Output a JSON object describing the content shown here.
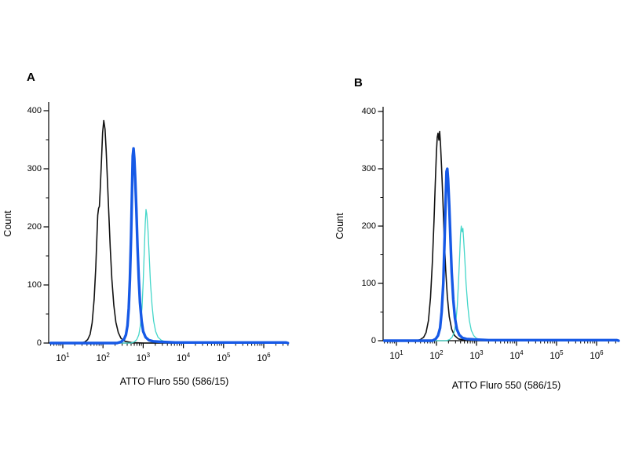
{
  "figure": {
    "background": "#ffffff",
    "axis_color": "#000000"
  },
  "chart_data": [
    {
      "type": "line",
      "title": "A",
      "xlabel": "ATTO Fluro 550 (586/15)",
      "ylabel": "Count",
      "x_scale": "log10",
      "x_tick_base": "10",
      "x_tick_exponents": [
        1,
        2,
        3,
        4,
        5,
        6
      ],
      "xlim_log": [
        0.65,
        6.62
      ],
      "y_ticks": [
        0,
        100,
        200,
        300,
        400
      ],
      "ylim": [
        0,
        400
      ],
      "grid": false,
      "legend": "none",
      "series": [
        {
          "name": "series-black",
          "color": "#111111",
          "stroke_width": 1.6,
          "peak": {
            "log_x": 2.02,
            "count": 383
          },
          "points": [
            [
              0.7,
              0
            ],
            [
              1.45,
              0
            ],
            [
              1.55,
              2
            ],
            [
              1.62,
              6
            ],
            [
              1.68,
              15
            ],
            [
              1.73,
              35
            ],
            [
              1.78,
              75
            ],
            [
              1.82,
              130
            ],
            [
              1.85,
              185
            ],
            [
              1.87,
              220
            ],
            [
              1.89,
              232
            ],
            [
              1.91,
              235
            ],
            [
              1.93,
              262
            ],
            [
              1.96,
              312
            ],
            [
              1.99,
              362
            ],
            [
              2.02,
              383
            ],
            [
              2.05,
              368
            ],
            [
              2.08,
              330
            ],
            [
              2.11,
              282
            ],
            [
              2.14,
              230
            ],
            [
              2.18,
              165
            ],
            [
              2.22,
              110
            ],
            [
              2.27,
              65
            ],
            [
              2.32,
              36
            ],
            [
              2.38,
              18
            ],
            [
              2.45,
              8
            ],
            [
              2.55,
              3
            ],
            [
              2.7,
              1
            ],
            [
              3.0,
              0
            ],
            [
              6.55,
              0
            ]
          ]
        },
        {
          "name": "series-cyan",
          "color": "#43d6c9",
          "stroke_width": 1.3,
          "peak": {
            "log_x": 3.07,
            "count": 230
          },
          "points": [
            [
              0.7,
              0
            ],
            [
              2.7,
              0
            ],
            [
              2.78,
              2
            ],
            [
              2.84,
              6
            ],
            [
              2.89,
              14
            ],
            [
              2.93,
              30
            ],
            [
              2.97,
              60
            ],
            [
              3.0,
              105
            ],
            [
              3.03,
              162
            ],
            [
              3.05,
              205
            ],
            [
              3.07,
              230
            ],
            [
              3.09,
              222
            ],
            [
              3.12,
              195
            ],
            [
              3.15,
              150
            ],
            [
              3.18,
              105
            ],
            [
              3.22,
              65
            ],
            [
              3.26,
              38
            ],
            [
              3.31,
              20
            ],
            [
              3.37,
              10
            ],
            [
              3.45,
              5
            ],
            [
              3.55,
              2
            ],
            [
              3.75,
              1
            ],
            [
              4.1,
              0
            ],
            [
              6.55,
              0
            ]
          ]
        },
        {
          "name": "series-blue",
          "color": "#1659e6",
          "stroke_width": 3.4,
          "peak": {
            "log_x": 2.75,
            "count": 335
          },
          "points": [
            [
              0.7,
              0
            ],
            [
              2.35,
              0
            ],
            [
              2.45,
              2
            ],
            [
              2.52,
              6
            ],
            [
              2.57,
              14
            ],
            [
              2.61,
              30
            ],
            [
              2.64,
              60
            ],
            [
              2.67,
              110
            ],
            [
              2.7,
              185
            ],
            [
              2.72,
              258
            ],
            [
              2.74,
              322
            ],
            [
              2.76,
              335
            ],
            [
              2.78,
              318
            ],
            [
              2.8,
              285
            ],
            [
              2.83,
              230
            ],
            [
              2.86,
              165
            ],
            [
              2.89,
              110
            ],
            [
              2.92,
              70
            ],
            [
              2.96,
              38
            ],
            [
              3.0,
              20
            ],
            [
              3.06,
              10
            ],
            [
              3.14,
              5
            ],
            [
              3.25,
              3
            ],
            [
              3.45,
              2
            ],
            [
              3.8,
              1
            ],
            [
              6.55,
              1
            ],
            [
              6.6,
              0
            ]
          ]
        }
      ]
    },
    {
      "type": "line",
      "title": "B",
      "xlabel": "ATTO Fluro 550 (586/15)",
      "ylabel": "Count",
      "x_scale": "log10",
      "x_tick_base": "10",
      "x_tick_exponents": [
        1,
        2,
        3,
        4,
        5,
        6
      ],
      "xlim_log": [
        0.67,
        6.53
      ],
      "y_ticks": [
        0,
        100,
        200,
        300,
        400
      ],
      "ylim": [
        0,
        400
      ],
      "grid": false,
      "legend": "none",
      "series": [
        {
          "name": "series-black",
          "color": "#111111",
          "stroke_width": 1.6,
          "peak": {
            "log_x": 2.08,
            "count": 365
          },
          "points": [
            [
              0.7,
              0
            ],
            [
              1.5,
              0
            ],
            [
              1.6,
              2
            ],
            [
              1.68,
              6
            ],
            [
              1.74,
              14
            ],
            [
              1.8,
              35
            ],
            [
              1.85,
              75
            ],
            [
              1.9,
              140
            ],
            [
              1.94,
              210
            ],
            [
              1.97,
              275
            ],
            [
              2.0,
              330
            ],
            [
              2.02,
              355
            ],
            [
              2.04,
              362
            ],
            [
              2.06,
              350
            ],
            [
              2.08,
              365
            ],
            [
              2.1,
              345
            ],
            [
              2.13,
              300
            ],
            [
              2.16,
              245
            ],
            [
              2.19,
              185
            ],
            [
              2.23,
              125
            ],
            [
              2.27,
              78
            ],
            [
              2.32,
              42
            ],
            [
              2.38,
              20
            ],
            [
              2.45,
              9
            ],
            [
              2.55,
              3
            ],
            [
              2.7,
              1
            ],
            [
              3.0,
              0
            ],
            [
              6.5,
              0
            ]
          ]
        },
        {
          "name": "series-cyan",
          "color": "#43d6c9",
          "stroke_width": 1.3,
          "peak": {
            "log_x": 2.62,
            "count": 200
          },
          "points": [
            [
              0.7,
              0
            ],
            [
              2.25,
              0
            ],
            [
              2.33,
              2
            ],
            [
              2.39,
              6
            ],
            [
              2.44,
              14
            ],
            [
              2.48,
              30
            ],
            [
              2.52,
              60
            ],
            [
              2.55,
              100
            ],
            [
              2.58,
              150
            ],
            [
              2.6,
              185
            ],
            [
              2.62,
              200
            ],
            [
              2.64,
              190
            ],
            [
              2.66,
              196
            ],
            [
              2.68,
              175
            ],
            [
              2.71,
              140
            ],
            [
              2.74,
              100
            ],
            [
              2.78,
              62
            ],
            [
              2.82,
              36
            ],
            [
              2.87,
              18
            ],
            [
              2.93,
              9
            ],
            [
              3.0,
              4
            ],
            [
              3.12,
              2
            ],
            [
              3.35,
              1
            ],
            [
              3.7,
              0
            ],
            [
              6.5,
              0
            ]
          ]
        },
        {
          "name": "series-blue",
          "color": "#1659e6",
          "stroke_width": 3.4,
          "peak": {
            "log_x": 2.26,
            "count": 300
          },
          "points": [
            [
              0.7,
              0
            ],
            [
              1.9,
              0
            ],
            [
              1.98,
              3
            ],
            [
              2.04,
              9
            ],
            [
              2.09,
              22
            ],
            [
              2.13,
              50
            ],
            [
              2.17,
              100
            ],
            [
              2.2,
              170
            ],
            [
              2.23,
              245
            ],
            [
              2.25,
              295
            ],
            [
              2.27,
              300
            ],
            [
              2.29,
              282
            ],
            [
              2.32,
              235
            ],
            [
              2.35,
              175
            ],
            [
              2.38,
              120
            ],
            [
              2.42,
              72
            ],
            [
              2.46,
              40
            ],
            [
              2.51,
              20
            ],
            [
              2.57,
              10
            ],
            [
              2.65,
              5
            ],
            [
              2.75,
              3
            ],
            [
              2.95,
              2
            ],
            [
              3.3,
              1
            ],
            [
              6.5,
              1
            ],
            [
              6.55,
              0
            ]
          ]
        }
      ]
    }
  ]
}
